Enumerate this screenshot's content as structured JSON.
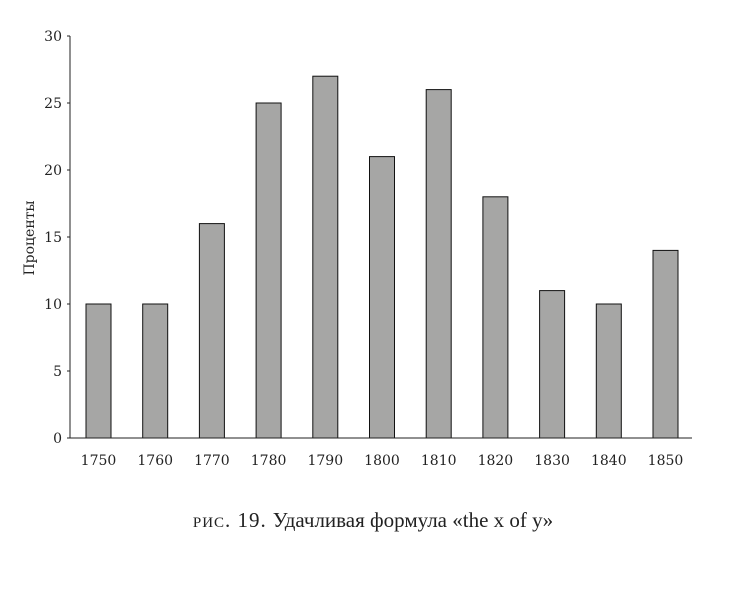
{
  "chart_data": {
    "type": "bar",
    "categories": [
      "1750",
      "1760",
      "1770",
      "1780",
      "1790",
      "1800",
      "1810",
      "1820",
      "1830",
      "1840",
      "1850"
    ],
    "values": [
      10,
      10,
      16,
      25,
      27,
      21,
      26,
      18,
      11,
      10,
      14
    ],
    "ylabel": "Проценты",
    "xlabel": "",
    "ylim": [
      0,
      30
    ],
    "yticks": [
      0,
      5,
      10,
      15,
      20,
      25,
      30
    ],
    "bar_color": "#a6a6a5",
    "bar_edge_color": "#111111",
    "grid": false,
    "legend": "none"
  },
  "caption": {
    "figure_label": "рис. 19.",
    "text": "Удачливая формула «the x of y»"
  }
}
